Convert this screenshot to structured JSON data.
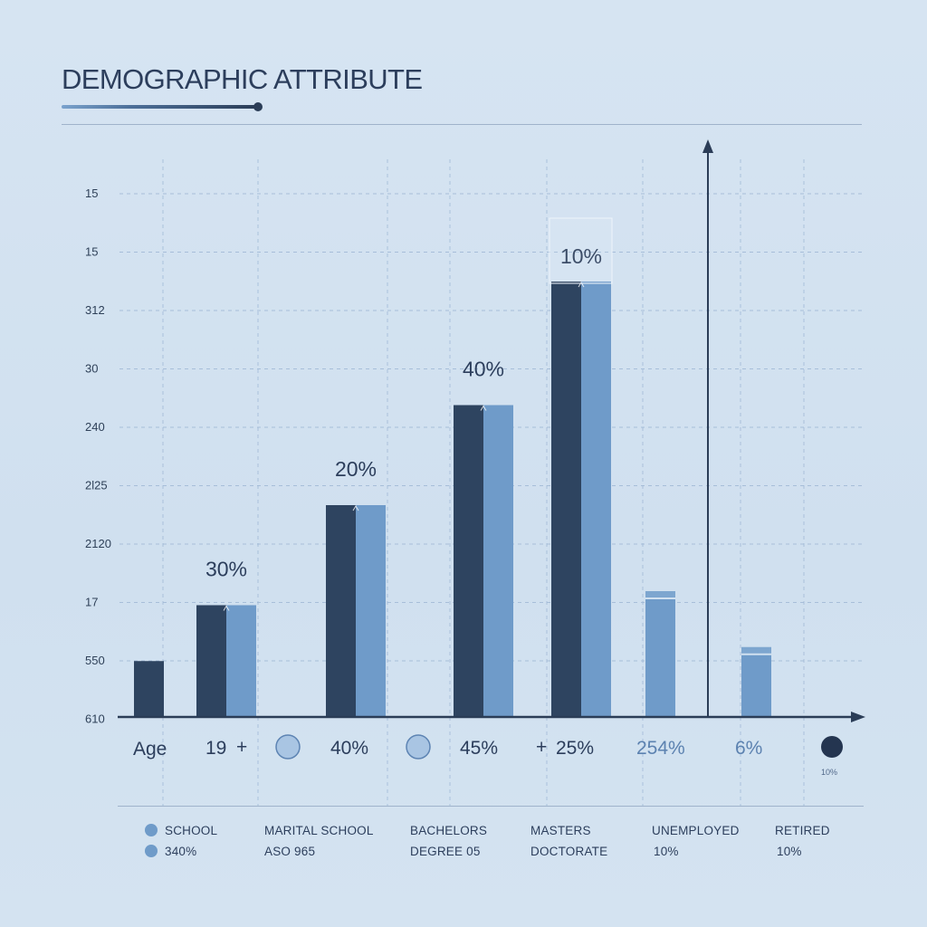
{
  "title": "DEMOGRAPHIC ATTRIBUTE",
  "colors": {
    "dark": "#2e4460",
    "light": "#6f9bc9",
    "axis": "#2b3d57",
    "grid": "#9db6d4"
  },
  "chart_data": {
    "type": "bar",
    "title": "DEMOGRAPHIC ATTRIBUTE",
    "y_ticks": [
      "15",
      "15",
      "312",
      "30",
      "240",
      "2l25",
      "2120",
      "17",
      "550",
      "610"
    ],
    "grid": true,
    "groups": [
      {
        "dark": 0.95,
        "light": null,
        "label": ""
      },
      {
        "dark": 1.9,
        "light": 1.9,
        "label": "30%"
      },
      {
        "dark": 3.6,
        "light": 3.6,
        "label": "20%"
      },
      {
        "dark": 5.3,
        "light": 5.3,
        "label": "40%"
      },
      {
        "dark": 7.4,
        "light": 7.4,
        "label": "10%"
      },
      {
        "dark": null,
        "light": 2.0,
        "label": ""
      },
      {
        "dark": null,
        "light": 1.05,
        "label": ""
      }
    ],
    "x_row": [
      "Age",
      "19",
      "40%",
      "45%",
      "25%",
      "254%",
      "6%"
    ],
    "x_row_extra": "10%",
    "legend": [
      {
        "line1": "SCHOOL",
        "line2": "340%",
        "marker": true
      },
      {
        "line1": "MARITAL SCHOOL",
        "line2": "ASO 965",
        "marker": false
      },
      {
        "line1": "BACHELORS",
        "line2": "DEGREE 05",
        "marker": false
      },
      {
        "line1": "MASTERS",
        "line2": "DOCTORATE",
        "marker": false
      },
      {
        "line1": "UNEMPLOYED",
        "line2": "10%",
        "marker": false
      },
      {
        "line1": "RETIRED",
        "line2": "10%",
        "marker": false
      }
    ]
  }
}
